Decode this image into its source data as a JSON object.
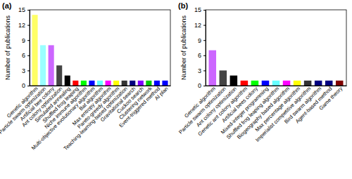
{
  "chart_data": [
    {
      "type": "bar",
      "title": "(a)",
      "y_label": "Number of publications",
      "categories": [
        "Genetic algorithm",
        "Particle swarm optimization",
        "Artificial bee colony",
        "Ant colony optimization",
        "Simulated annealing",
        "Shuffled frog leaping",
        "Niche immune algorithm",
        "Multi-objective evolutionary algorithm",
        "Bat algorithm",
        "Max entropy algorithm",
        "Pareto-greedy algorithm",
        "Teaching-learning-based optimization",
        "Gravitational search",
        "Cuckoo search",
        "Clustering network",
        "Event-triggered method",
        "AI plan"
      ],
      "values": [
        14,
        8,
        8,
        4,
        2,
        1,
        1,
        1,
        1,
        1,
        1,
        1,
        1,
        1,
        1,
        1,
        1
      ],
      "colors": [
        "#ffff66",
        "#99ffff",
        "#cc66ff",
        "#444444",
        "#000000",
        "#ff0000",
        "#00ff00",
        "#0000ff",
        "#66ffff",
        "#ff00ff",
        "#ffff00",
        "#333333",
        "#000080",
        "#8000ff",
        "#00cc00",
        "#0000ff",
        "#0000ff"
      ],
      "ylim": [
        0,
        15
      ],
      "yticks": [
        0,
        3,
        6,
        9,
        12,
        15
      ]
    },
    {
      "type": "bar",
      "title": "(b)",
      "y_label": "Number of publications",
      "categories": [
        "Genetic algorithm",
        "Particle swarm optimization",
        "Ant colony optimization",
        "Genetic ant colony algorithm",
        "Artificial bees colony",
        "Mixed-integer programming",
        "Shuffled frog leaping algorithm",
        "Biogeography based algorithm",
        "Max percentage algorithm",
        "Imperialist competitive algorithm",
        "Bird swarm algorithm",
        "Agent-based method",
        "Game theory"
      ],
      "values": [
        7,
        3,
        2,
        1,
        1,
        1,
        1,
        1,
        1,
        1,
        1,
        1,
        1
      ],
      "colors": [
        "#cc66ff",
        "#444444",
        "#000000",
        "#ff0000",
        "#00ff00",
        "#0000ff",
        "#66ffff",
        "#ff00ff",
        "#ffff00",
        "#333333",
        "#000080",
        "#000080",
        "#800000"
      ],
      "ylim": [
        0,
        15
      ],
      "yticks": [
        0,
        3,
        6,
        9,
        12,
        15
      ]
    }
  ]
}
